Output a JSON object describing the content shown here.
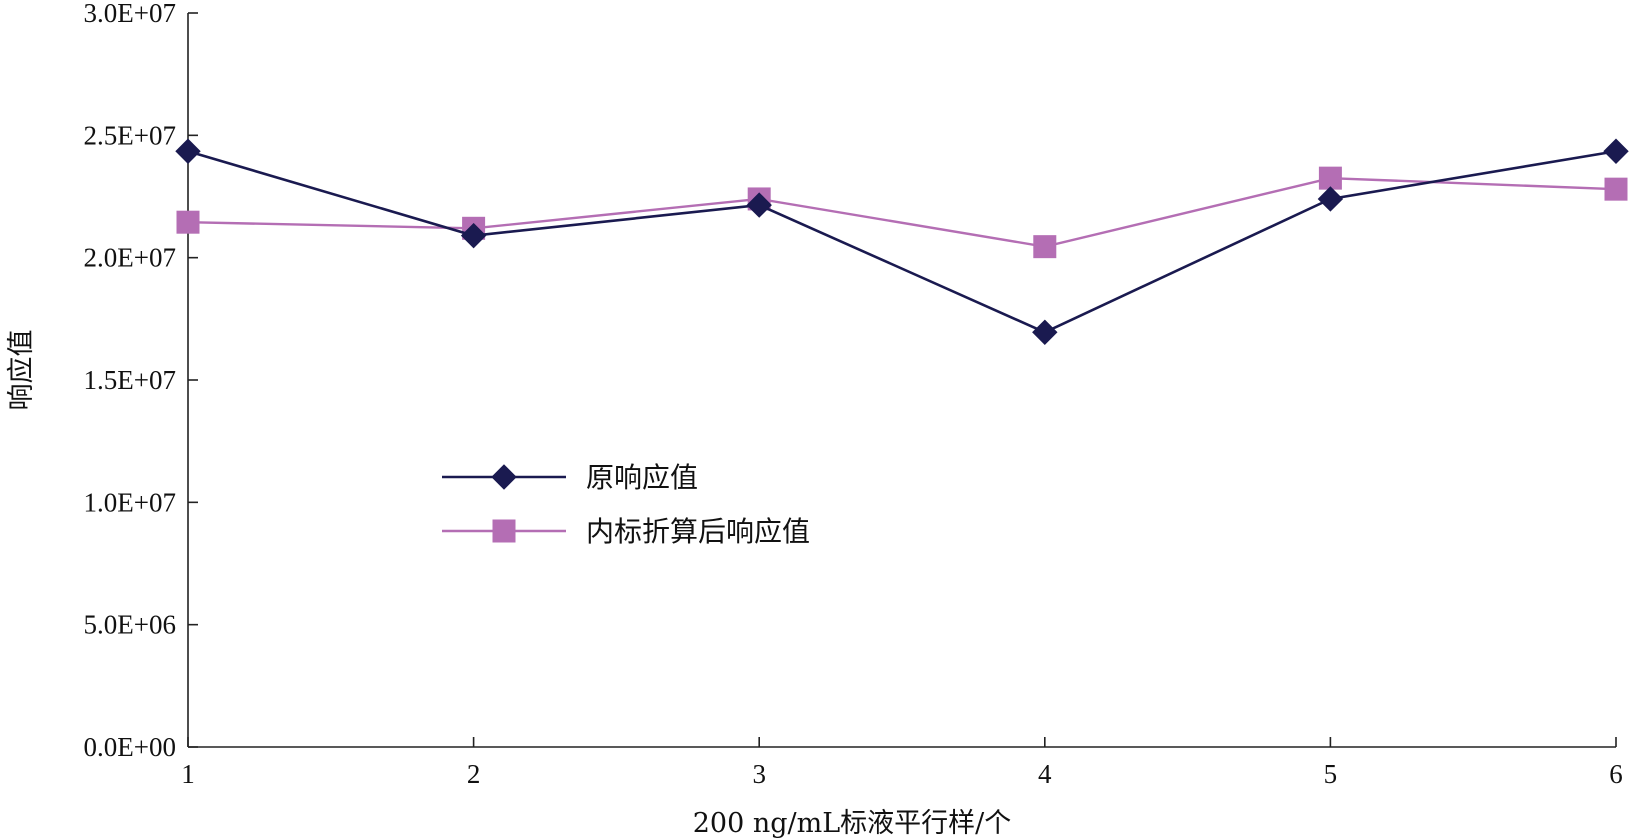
{
  "chart_data": {
    "type": "line",
    "xlabel": "200 ng/mL标液平行样/个",
    "ylabel": "响应值",
    "x": [
      1,
      2,
      3,
      4,
      5,
      6
    ],
    "ylim": [
      0,
      30000000
    ],
    "yticks": [
      0,
      5000000,
      10000000,
      15000000,
      20000000,
      25000000,
      30000000
    ],
    "ytick_labels": [
      "0.0E+00",
      "5.0E+06",
      "1.0E+07",
      "1.5E+07",
      "2.0E+07",
      "2.5E+07",
      "3.0E+07"
    ],
    "xtick_labels": [
      "1",
      "2",
      "3",
      "4",
      "5",
      "6"
    ],
    "grid": false,
    "legend_position": "center-left",
    "series": [
      {
        "name": "原响应值",
        "marker": "diamond",
        "color": "#1a1a50",
        "values": [
          24350000,
          20900000,
          22150000,
          16950000,
          22400000,
          24350000
        ]
      },
      {
        "name": "内标折算后响应值",
        "marker": "square",
        "color": "#b46eb4",
        "values": [
          21450000,
          21200000,
          22400000,
          20450000,
          23250000,
          22800000
        ]
      }
    ]
  }
}
